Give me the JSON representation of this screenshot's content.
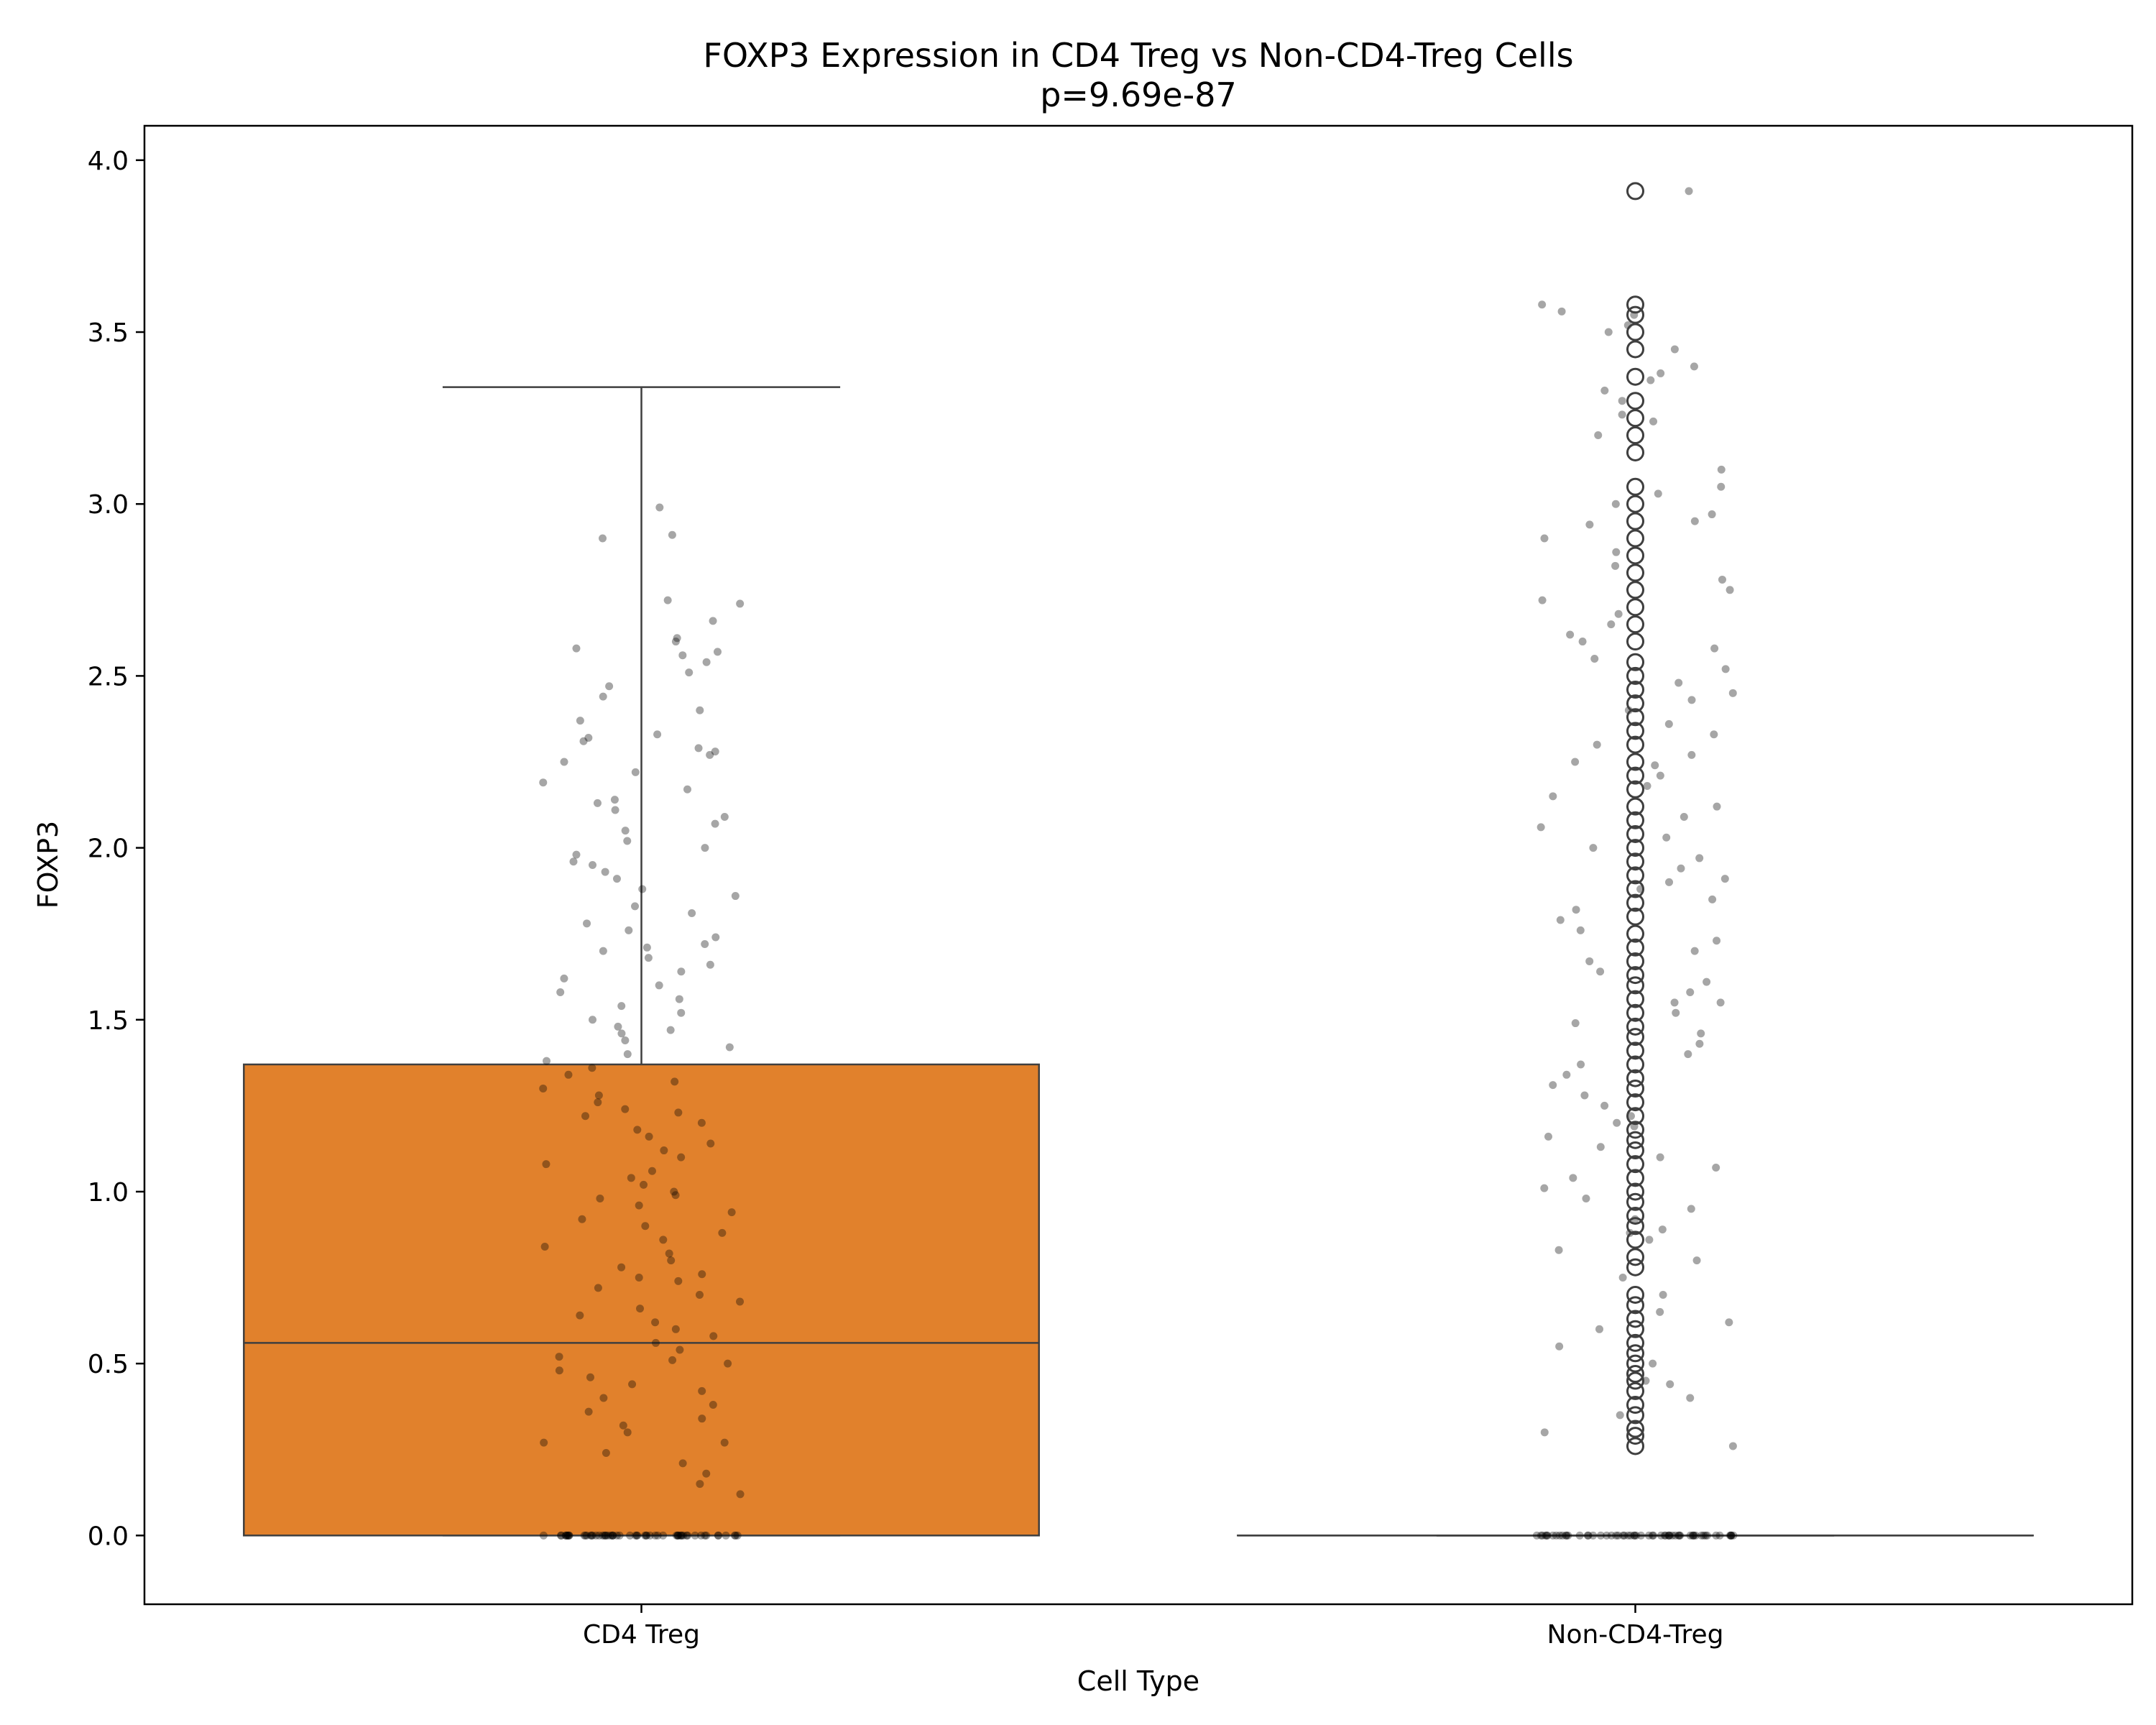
{
  "chart_data": {
    "type": "box",
    "title": "FOXP3 Expression in CD4 Treg vs Non-CD4-Treg Cells",
    "subtitle": "p=9.69e-87",
    "xlabel": "Cell Type",
    "ylabel": "FOXP3",
    "categories": [
      "CD4 Treg",
      "Non-CD4-Treg"
    ],
    "ylim": [
      -0.2,
      4.1
    ],
    "yticks": [
      0.0,
      0.5,
      1.0,
      1.5,
      2.0,
      2.5,
      3.0,
      3.5,
      4.0
    ],
    "ytick_labels": [
      "0.0",
      "0.5",
      "1.0",
      "1.5",
      "2.0",
      "2.5",
      "3.0",
      "3.5",
      "4.0"
    ],
    "grid": false,
    "legend": "none",
    "boxes": [
      {
        "category": "CD4 Treg",
        "whisker_low": 0.0,
        "q1": 0.0,
        "median": 0.56,
        "q3": 1.37,
        "whisker_high": 3.34,
        "color": "#e1812c",
        "outliers": []
      },
      {
        "category": "Non-CD4-Treg",
        "whisker_low": 0.0,
        "q1": 0.0,
        "median": 0.0,
        "q3": 0.0,
        "whisker_high": 0.0,
        "color": "#3274a1",
        "outliers": [
          0.26,
          0.29,
          0.31,
          0.35,
          0.38,
          0.42,
          0.45,
          0.47,
          0.5,
          0.53,
          0.56,
          0.6,
          0.63,
          0.67,
          0.7,
          0.78,
          0.81,
          0.86,
          0.9,
          0.93,
          0.97,
          1.0,
          1.04,
          1.08,
          1.12,
          1.15,
          1.18,
          1.22,
          1.26,
          1.3,
          1.33,
          1.37,
          1.41,
          1.45,
          1.48,
          1.52,
          1.56,
          1.6,
          1.63,
          1.67,
          1.71,
          1.75,
          1.8,
          1.84,
          1.88,
          1.92,
          1.96,
          2.0,
          2.04,
          2.08,
          2.12,
          2.17,
          2.21,
          2.25,
          2.3,
          2.34,
          2.38,
          2.42,
          2.46,
          2.5,
          2.54,
          2.6,
          2.65,
          2.7,
          2.75,
          2.8,
          2.85,
          2.9,
          2.95,
          3.0,
          3.05,
          3.15,
          3.2,
          3.25,
          3.3,
          3.37,
          3.45,
          3.5,
          3.55,
          3.58,
          3.91
        ]
      }
    ],
    "strip_points": {
      "color": "#000000",
      "opacity": 0.35,
      "CD4 Treg": {
        "zero_count": 60,
        "jitter": [
          -0.1,
          0.1
        ],
        "values": [
          2.91,
          2.9,
          2.72,
          2.71,
          2.61,
          2.6,
          2.58,
          2.57,
          2.56,
          2.54,
          2.51,
          2.47,
          2.4,
          2.37,
          2.33,
          2.32,
          2.31,
          2.29,
          2.28,
          2.27,
          2.25,
          2.22,
          2.17,
          2.14,
          2.13,
          2.11,
          2.09,
          2.07,
          2.05,
          2.02,
          2.0,
          1.98,
          1.96,
          1.93,
          1.91,
          1.88,
          1.86,
          1.83,
          1.81,
          1.78,
          1.76,
          1.74,
          1.72,
          1.7,
          1.68,
          1.66,
          1.64,
          1.62,
          1.6,
          1.58,
          1.56,
          1.54,
          1.52,
          1.5,
          1.48,
          1.46,
          1.44,
          1.42,
          1.4,
          1.38,
          1.36,
          1.34,
          1.32,
          1.3,
          1.28,
          1.26,
          1.24,
          1.22,
          1.2,
          1.18,
          1.16,
          1.14,
          1.12,
          1.1,
          1.08,
          1.06,
          1.04,
          1.02,
          1.0,
          0.98,
          0.96,
          0.94,
          0.92,
          0.9,
          0.88,
          0.86,
          0.84,
          0.82,
          0.8,
          0.78,
          0.76,
          0.74,
          0.72,
          0.7,
          0.68,
          0.66,
          0.64,
          0.62,
          0.6,
          0.58,
          0.56,
          0.54,
          0.52,
          0.5,
          0.48,
          0.46,
          0.44,
          0.42,
          0.4,
          0.38,
          0.36,
          0.34,
          0.32,
          0.3,
          0.27,
          0.24,
          0.21,
          0.18,
          0.15,
          0.12,
          2.99,
          2.66,
          2.44,
          2.19,
          1.95,
          1.71,
          1.47,
          1.23,
          0.99,
          0.75,
          0.51,
          0.27
        ]
      },
      "Non-CD4-Treg": {
        "zero_count": 60,
        "jitter": [
          -0.1,
          0.1
        ],
        "values": [
          3.91,
          3.58,
          3.56,
          3.55,
          3.52,
          3.5,
          3.45,
          3.38,
          3.36,
          3.33,
          3.3,
          3.26,
          3.24,
          3.2,
          3.1,
          3.05,
          3.03,
          3.0,
          2.97,
          2.94,
          2.9,
          2.86,
          2.82,
          2.78,
          2.75,
          2.72,
          2.68,
          2.65,
          2.62,
          2.58,
          2.55,
          2.52,
          2.48,
          2.45,
          2.43,
          2.4,
          2.36,
          2.33,
          2.3,
          2.27,
          2.24,
          2.21,
          2.18,
          2.15,
          2.12,
          2.09,
          2.06,
          2.03,
          2.0,
          1.97,
          1.94,
          1.91,
          1.88,
          1.85,
          1.82,
          1.79,
          1.76,
          1.73,
          1.7,
          1.67,
          1.64,
          1.61,
          1.58,
          1.55,
          1.52,
          1.49,
          1.46,
          1.43,
          1.4,
          1.37,
          1.34,
          1.31,
          1.28,
          1.25,
          1.22,
          1.19,
          1.16,
          1.13,
          1.1,
          1.07,
          1.04,
          1.01,
          0.98,
          0.95,
          0.92,
          0.89,
          0.86,
          0.83,
          0.8,
          0.75,
          0.7,
          0.65,
          0.6,
          0.55,
          0.5,
          0.45,
          0.4,
          0.35,
          0.3,
          0.26,
          3.4,
          2.95,
          2.6,
          2.25,
          1.9,
          1.55,
          1.2,
          0.88,
          0.62,
          0.44
        ]
      }
    }
  }
}
